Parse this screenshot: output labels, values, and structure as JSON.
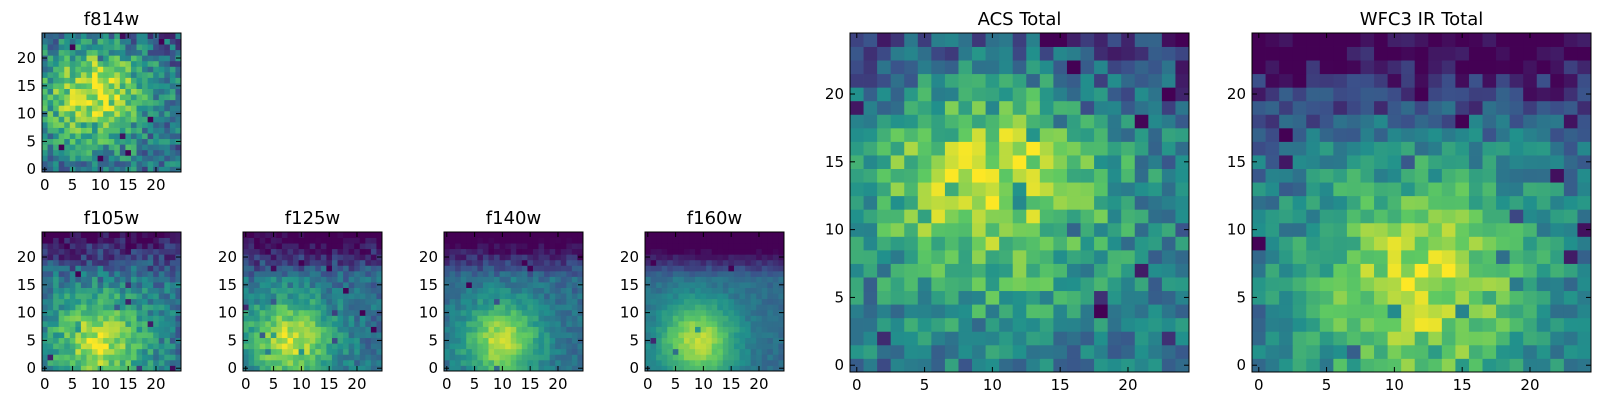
{
  "colormap": {
    "name": "viridis",
    "stops": [
      "#440154",
      "#3b528b",
      "#21918c",
      "#5ec962",
      "#fde725"
    ]
  },
  "chart_data": [
    {
      "type": "heatmap",
      "title": "f814w",
      "grid_size": 25,
      "xlim": [
        -0.5,
        24.5
      ],
      "ylim": [
        -0.5,
        24.5
      ],
      "xticks": [
        0,
        5,
        10,
        15,
        20
      ],
      "yticks": [
        0,
        5,
        10,
        15,
        20
      ],
      "xtick_labels": [
        "0",
        "5",
        "10",
        "15",
        "20"
      ],
      "ytick_labels": [
        "0",
        "5",
        "10",
        "15",
        "20"
      ],
      "origin": "lower",
      "colormap": "viridis",
      "texture": {
        "peak": [
          9,
          14
        ],
        "width": 10,
        "top_dark": 0.1,
        "noise": 0.42,
        "seed": 11
      }
    },
    {
      "type": "heatmap",
      "title": "f105w",
      "grid_size": 25,
      "xlim": [
        -0.5,
        24.5
      ],
      "ylim": [
        -0.5,
        24.5
      ],
      "xticks": [
        0,
        5,
        10,
        15,
        20
      ],
      "yticks": [
        0,
        5,
        10,
        15,
        20
      ],
      "xtick_labels": [
        "0",
        "5",
        "10",
        "15",
        "20"
      ],
      "ytick_labels": [
        "0",
        "5",
        "10",
        "15",
        "20"
      ],
      "origin": "lower",
      "colormap": "viridis",
      "texture": {
        "peak": [
          10,
          5
        ],
        "width": 9,
        "top_dark": 0.35,
        "noise": 0.3,
        "seed": 21
      }
    },
    {
      "type": "heatmap",
      "title": "f125w",
      "grid_size": 25,
      "xlim": [
        -0.5,
        24.5
      ],
      "ylim": [
        -0.5,
        24.5
      ],
      "xticks": [
        0,
        5,
        10,
        15,
        20
      ],
      "yticks": [
        0,
        5,
        10,
        15,
        20
      ],
      "xtick_labels": [
        "0",
        "5",
        "10",
        "15",
        "20"
      ],
      "ytick_labels": [
        "0",
        "5",
        "10",
        "15",
        "20"
      ],
      "origin": "lower",
      "colormap": "viridis",
      "texture": {
        "peak": [
          8,
          5
        ],
        "width": 8,
        "top_dark": 0.4,
        "noise": 0.24,
        "seed": 31
      }
    },
    {
      "type": "heatmap",
      "title": "f140w",
      "grid_size": 25,
      "xlim": [
        -0.5,
        24.5
      ],
      "ylim": [
        -0.5,
        24.5
      ],
      "xticks": [
        0,
        5,
        10,
        15,
        20
      ],
      "yticks": [
        0,
        5,
        10,
        15,
        20
      ],
      "xtick_labels": [
        "0",
        "5",
        "10",
        "15",
        "20"
      ],
      "ytick_labels": [
        "0",
        "5",
        "10",
        "15",
        "20"
      ],
      "origin": "lower",
      "colormap": "viridis",
      "texture": {
        "peak": [
          10,
          5
        ],
        "width": 7,
        "top_dark": 0.45,
        "noise": 0.16,
        "seed": 41
      }
    },
    {
      "type": "heatmap",
      "title": "f160w",
      "grid_size": 25,
      "xlim": [
        -0.5,
        24.5
      ],
      "ylim": [
        -0.5,
        24.5
      ],
      "xticks": [
        0,
        5,
        10,
        15,
        20
      ],
      "yticks": [
        0,
        5,
        10,
        15,
        20
      ],
      "xtick_labels": [
        "0",
        "5",
        "10",
        "15",
        "20"
      ],
      "ytick_labels": [
        "0",
        "5",
        "10",
        "15",
        "20"
      ],
      "origin": "lower",
      "colormap": "viridis",
      "texture": {
        "peak": [
          9,
          5
        ],
        "width": 7,
        "top_dark": 0.55,
        "noise": 0.1,
        "seed": 51
      }
    },
    {
      "type": "heatmap",
      "title": "ACS Total",
      "grid_size": 25,
      "xlim": [
        -0.5,
        24.5
      ],
      "ylim": [
        -0.5,
        24.5
      ],
      "xticks": [
        0,
        5,
        10,
        15,
        20
      ],
      "yticks": [
        0,
        5,
        10,
        15,
        20
      ],
      "xtick_labels": [
        "0",
        "5",
        "10",
        "15",
        "20"
      ],
      "ytick_labels": [
        "0",
        "5",
        "10",
        "15",
        "20"
      ],
      "origin": "lower",
      "colormap": "viridis",
      "texture": {
        "peak": [
          10,
          14
        ],
        "width": 10,
        "top_dark": 0.25,
        "noise": 0.36,
        "seed": 61
      }
    },
    {
      "type": "heatmap",
      "title": "WFC3 IR Total",
      "grid_size": 25,
      "xlim": [
        -0.5,
        24.5
      ],
      "ylim": [
        -0.5,
        24.5
      ],
      "xticks": [
        0,
        5,
        10,
        15,
        20
      ],
      "yticks": [
        0,
        5,
        10,
        15,
        20
      ],
      "xtick_labels": [
        "0",
        "5",
        "10",
        "15",
        "20"
      ],
      "ytick_labels": [
        "0",
        "5",
        "10",
        "15",
        "20"
      ],
      "origin": "lower",
      "colormap": "viridis",
      "texture": {
        "peak": [
          12,
          6
        ],
        "width": 9,
        "top_dark": 0.4,
        "noise": 0.3,
        "seed": 71
      }
    }
  ]
}
